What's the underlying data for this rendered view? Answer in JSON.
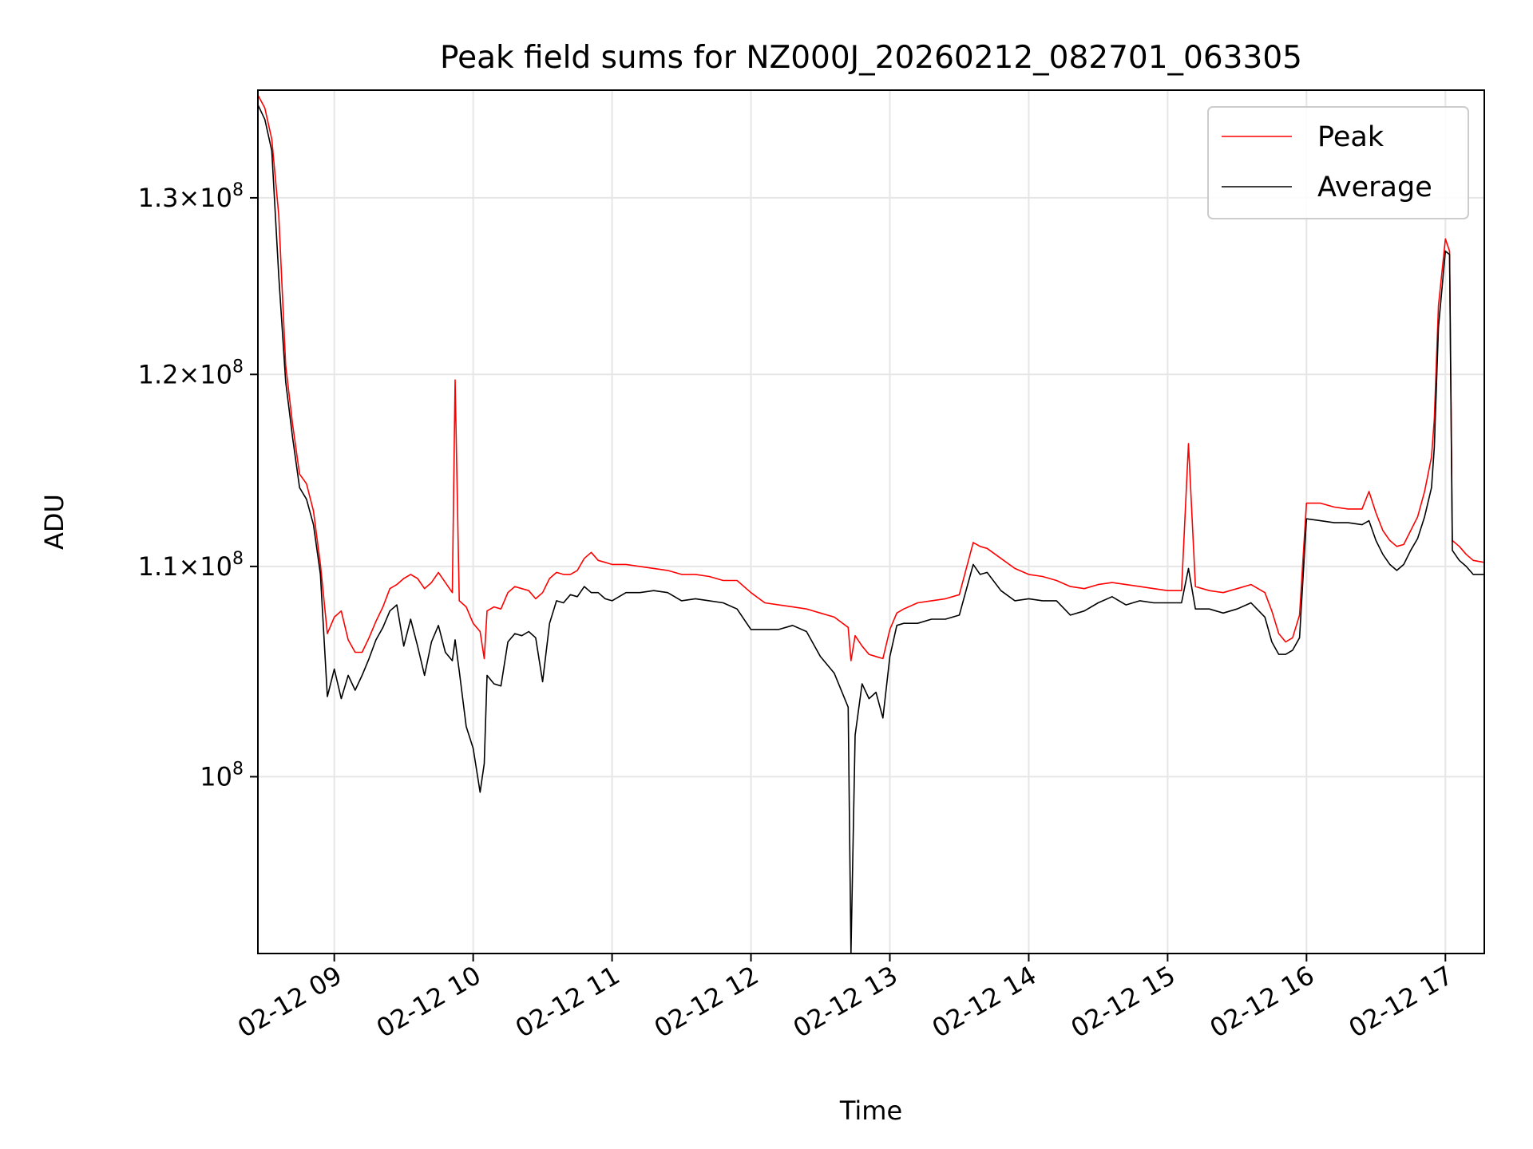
{
  "chart_data": {
    "type": "line",
    "title": "Peak field sums for NZ000J_20260212_082701_063305",
    "xlabel": "Time",
    "ylabel": "ADU",
    "yscale": "log",
    "xlim": [
      8.45,
      17.28
    ],
    "ylim": [
      92300000,
      136500000
    ],
    "grid": true,
    "legend_loc": "upper right",
    "x_ticks": [
      {
        "value": 9,
        "label": "02-12 09"
      },
      {
        "value": 10,
        "label": "02-12 10"
      },
      {
        "value": 11,
        "label": "02-12 11"
      },
      {
        "value": 12,
        "label": "02-12 12"
      },
      {
        "value": 13,
        "label": "02-12 13"
      },
      {
        "value": 14,
        "label": "02-12 14"
      },
      {
        "value": 15,
        "label": "02-12 15"
      },
      {
        "value": 16,
        "label": "02-12 16"
      },
      {
        "value": 17,
        "label": "02-12 17"
      }
    ],
    "y_ticks": [
      {
        "value": 100000000,
        "mantissa": "",
        "exponent": "8"
      },
      {
        "value": 110000000,
        "mantissa": "1.1",
        "exponent": "8"
      },
      {
        "value": 120000000,
        "mantissa": "1.2",
        "exponent": "8"
      },
      {
        "value": 130000000,
        "mantissa": "1.3",
        "exponent": "8"
      }
    ],
    "series": [
      {
        "name": "Peak",
        "color": "#ff0000",
        "x": [
          8.45,
          8.5,
          8.55,
          8.6,
          8.65,
          8.7,
          8.75,
          8.8,
          8.85,
          8.9,
          8.95,
          9.0,
          9.05,
          9.1,
          9.15,
          9.2,
          9.25,
          9.3,
          9.35,
          9.4,
          9.45,
          9.5,
          9.55,
          9.6,
          9.65,
          9.7,
          9.75,
          9.8,
          9.85,
          9.87,
          9.9,
          9.95,
          10.0,
          10.05,
          10.08,
          10.1,
          10.15,
          10.2,
          10.25,
          10.3,
          10.35,
          10.4,
          10.45,
          10.5,
          10.55,
          10.6,
          10.65,
          10.7,
          10.75,
          10.8,
          10.85,
          10.9,
          10.95,
          11.0,
          11.1,
          11.2,
          11.3,
          11.4,
          11.5,
          11.6,
          11.7,
          11.8,
          11.9,
          12.0,
          12.1,
          12.2,
          12.3,
          12.4,
          12.5,
          12.6,
          12.7,
          12.72,
          12.75,
          12.8,
          12.85,
          12.9,
          12.95,
          13.0,
          13.05,
          13.1,
          13.2,
          13.3,
          13.4,
          13.5,
          13.6,
          13.65,
          13.7,
          13.8,
          13.9,
          14.0,
          14.1,
          14.2,
          14.3,
          14.4,
          14.5,
          14.6,
          14.7,
          14.8,
          14.9,
          15.0,
          15.1,
          15.15,
          15.2,
          15.3,
          15.4,
          15.5,
          15.6,
          15.7,
          15.75,
          15.8,
          15.85,
          15.9,
          15.95,
          16.0,
          16.1,
          16.2,
          16.3,
          16.4,
          16.45,
          16.5,
          16.55,
          16.6,
          16.65,
          16.7,
          16.75,
          16.8,
          16.85,
          16.9,
          16.92,
          16.95,
          17.0,
          17.03,
          17.05,
          17.1,
          17.15,
          17.2,
          17.28
        ],
        "values": [
          136200000,
          135400000,
          133500000,
          129000000,
          120500000,
          117300000,
          114700000,
          114200000,
          112800000,
          110100000,
          106700000,
          107500000,
          107800000,
          106400000,
          105800000,
          105800000,
          106500000,
          107300000,
          108000000,
          108900000,
          109100000,
          109400000,
          109600000,
          109400000,
          108900000,
          109200000,
          109700000,
          109200000,
          108700000,
          119700000,
          108300000,
          108000000,
          107200000,
          106800000,
          105500000,
          107800000,
          108000000,
          107900000,
          108700000,
          109000000,
          108900000,
          108800000,
          108400000,
          108700000,
          109400000,
          109700000,
          109600000,
          109600000,
          109800000,
          110400000,
          110700000,
          110300000,
          110200000,
          110100000,
          110100000,
          110000000,
          109900000,
          109800000,
          109600000,
          109600000,
          109500000,
          109300000,
          109300000,
          108700000,
          108200000,
          108100000,
          108000000,
          107900000,
          107700000,
          107500000,
          107000000,
          105400000,
          106600000,
          106100000,
          105700000,
          105600000,
          105500000,
          106900000,
          107700000,
          107900000,
          108200000,
          108300000,
          108400000,
          108600000,
          111200000,
          111000000,
          110900000,
          110400000,
          109900000,
          109600000,
          109500000,
          109300000,
          109000000,
          108900000,
          109100000,
          109200000,
          109100000,
          109000000,
          108900000,
          108800000,
          108800000,
          116300000,
          109000000,
          108800000,
          108700000,
          108900000,
          109100000,
          108700000,
          107800000,
          106700000,
          106300000,
          106500000,
          107600000,
          113200000,
          113200000,
          113000000,
          112900000,
          112900000,
          113800000,
          112700000,
          111800000,
          111300000,
          111000000,
          111100000,
          111800000,
          112500000,
          113800000,
          115600000,
          117600000,
          123800000,
          127600000,
          126900000,
          111300000,
          111000000,
          110600000,
          110300000,
          110200000
        ]
      },
      {
        "name": "Average",
        "color": "#000000",
        "x": [
          8.45,
          8.5,
          8.55,
          8.6,
          8.65,
          8.7,
          8.75,
          8.8,
          8.85,
          8.9,
          8.95,
          9.0,
          9.05,
          9.1,
          9.15,
          9.2,
          9.25,
          9.3,
          9.35,
          9.4,
          9.45,
          9.5,
          9.55,
          9.6,
          9.65,
          9.7,
          9.75,
          9.8,
          9.85,
          9.87,
          9.9,
          9.95,
          10.0,
          10.05,
          10.08,
          10.1,
          10.15,
          10.2,
          10.25,
          10.3,
          10.35,
          10.4,
          10.45,
          10.5,
          10.55,
          10.6,
          10.65,
          10.7,
          10.75,
          10.8,
          10.85,
          10.9,
          10.95,
          11.0,
          11.1,
          11.2,
          11.3,
          11.4,
          11.5,
          11.6,
          11.7,
          11.8,
          11.9,
          12.0,
          12.1,
          12.2,
          12.3,
          12.4,
          12.5,
          12.6,
          12.7,
          12.72,
          12.75,
          12.8,
          12.85,
          12.9,
          12.95,
          13.0,
          13.05,
          13.1,
          13.2,
          13.3,
          13.4,
          13.5,
          13.6,
          13.65,
          13.7,
          13.8,
          13.9,
          14.0,
          14.1,
          14.2,
          14.3,
          14.4,
          14.5,
          14.6,
          14.7,
          14.8,
          14.9,
          15.0,
          15.1,
          15.15,
          15.2,
          15.3,
          15.4,
          15.5,
          15.6,
          15.7,
          15.75,
          15.8,
          15.85,
          15.9,
          15.95,
          16.0,
          16.1,
          16.2,
          16.3,
          16.4,
          16.45,
          16.5,
          16.55,
          16.6,
          16.65,
          16.7,
          16.75,
          16.8,
          16.85,
          16.9,
          16.92,
          16.95,
          17.0,
          17.03,
          17.05,
          17.1,
          17.15,
          17.2,
          17.28
        ],
        "values": [
          135600000,
          134700000,
          132800000,
          125500000,
          119600000,
          116600000,
          114000000,
          113400000,
          112100000,
          109600000,
          103700000,
          105000000,
          103600000,
          104700000,
          104000000,
          104700000,
          105500000,
          106400000,
          107000000,
          107800000,
          108100000,
          106100000,
          107400000,
          106100000,
          104700000,
          106300000,
          107100000,
          105800000,
          105400000,
          106400000,
          104900000,
          102300000,
          101300000,
          99300000,
          100600000,
          104700000,
          104300000,
          104200000,
          106300000,
          106700000,
          106600000,
          106800000,
          106500000,
          104400000,
          107200000,
          108300000,
          108200000,
          108600000,
          108500000,
          109000000,
          108700000,
          108700000,
          108400000,
          108300000,
          108700000,
          108700000,
          108800000,
          108700000,
          108300000,
          108400000,
          108300000,
          108200000,
          107900000,
          106900000,
          106900000,
          106900000,
          107100000,
          106800000,
          105600000,
          104800000,
          103200000,
          92300000,
          101900000,
          104300000,
          103600000,
          103900000,
          102700000,
          105600000,
          107100000,
          107200000,
          107200000,
          107400000,
          107400000,
          107600000,
          110100000,
          109600000,
          109700000,
          108800000,
          108300000,
          108400000,
          108300000,
          108300000,
          107600000,
          107800000,
          108200000,
          108500000,
          108100000,
          108300000,
          108200000,
          108200000,
          108200000,
          109900000,
          107900000,
          107900000,
          107700000,
          107900000,
          108200000,
          107500000,
          106300000,
          105700000,
          105700000,
          105900000,
          106500000,
          112400000,
          112300000,
          112200000,
          112200000,
          112100000,
          112300000,
          111300000,
          110600000,
          110100000,
          109800000,
          110100000,
          110800000,
          111400000,
          112500000,
          114000000,
          116100000,
          122600000,
          126900000,
          126700000,
          110800000,
          110300000,
          110000000,
          109600000,
          109600000
        ]
      }
    ]
  }
}
